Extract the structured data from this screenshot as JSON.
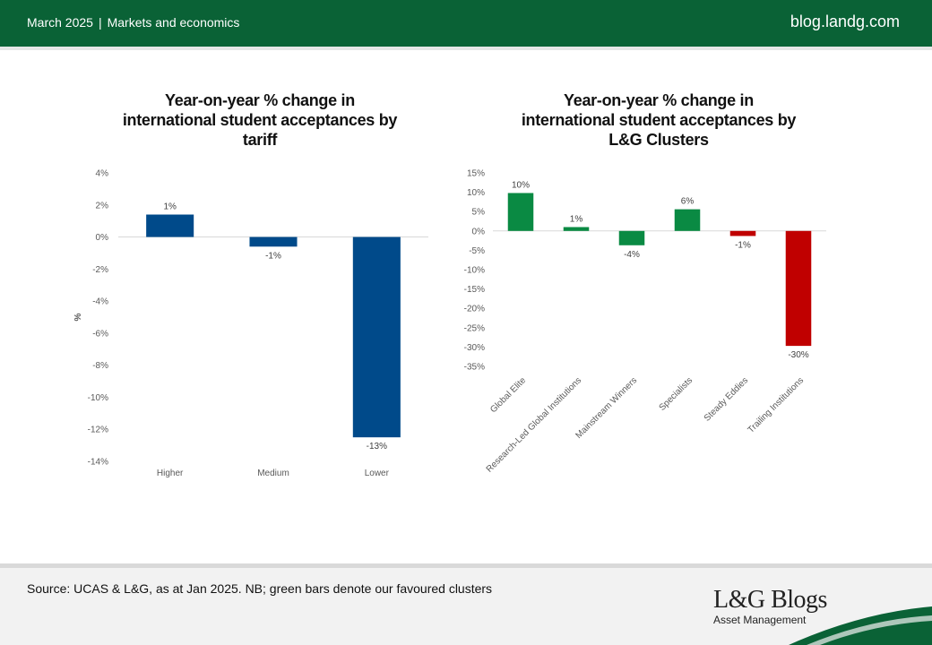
{
  "header": {
    "date": "March 2025",
    "separator": "|",
    "category": "Markets and economics",
    "site": "blog.landg.com"
  },
  "colors": {
    "brand_green": "#0a6236",
    "tariff_bar": "#004a8a",
    "favoured_bar": "#0a8a43",
    "other_bar": "#c00000"
  },
  "chart_data": [
    {
      "type": "bar",
      "title": "Year-on-year % change in international student acceptances by tariff",
      "title_lines": [
        "Year-on-year % change in",
        "international student acceptances by",
        "tariff"
      ],
      "categories": [
        "Higher",
        "Medium",
        "Lower"
      ],
      "values": [
        1.4,
        -0.6,
        -12.5
      ],
      "data_labels": [
        "1%",
        "-1%",
        "-13%"
      ],
      "ylabel": "%",
      "ylim": [
        -14,
        4
      ],
      "yticks": [
        4,
        2,
        0,
        -2,
        -4,
        -6,
        -8,
        -10,
        -12,
        -14
      ],
      "ytick_labels": [
        "4%",
        "2%",
        "0%",
        "-2%",
        "-4%",
        "-6%",
        "-8%",
        "-10%",
        "-12%",
        "-14%"
      ],
      "bar_colors": [
        "#004a8a",
        "#004a8a",
        "#004a8a"
      ],
      "grid": false
    },
    {
      "type": "bar",
      "title": "Year-on-year % change in international student acceptances by L&G Clusters",
      "title_lines": [
        "Year-on-year % change in",
        "international student acceptances by",
        "L&G Clusters"
      ],
      "categories": [
        "Global Elite",
        "Research-Led Global Institutions",
        "Mainstream Winners",
        "Specialists",
        "Steady Eddies",
        "Trailing Institutions"
      ],
      "values": [
        9.8,
        1.0,
        -3.7,
        5.6,
        -1.3,
        -29.7
      ],
      "data_labels": [
        "10%",
        "1%",
        "-4%",
        "6%",
        "-1%",
        "-30%"
      ],
      "ylim": [
        -35,
        15
      ],
      "yticks": [
        15,
        10,
        5,
        0,
        -5,
        -10,
        -15,
        -20,
        -25,
        -30,
        -35
      ],
      "ytick_labels": [
        "15%",
        "10%",
        "5%",
        "0%",
        "-5%",
        "-10%",
        "-15%",
        "-20%",
        "-25%",
        "-30%",
        "-35%"
      ],
      "bar_colors": [
        "#0a8a43",
        "#0a8a43",
        "#0a8a43",
        "#0a8a43",
        "#c00000",
        "#c00000"
      ],
      "grid": false
    }
  ],
  "footer": {
    "source": "Source: UCAS & L&G, as at Jan 2025. NB; green bars denote our favoured clusters",
    "logo_text": "L&G Blogs",
    "logo_subtitle": "Asset Management"
  }
}
